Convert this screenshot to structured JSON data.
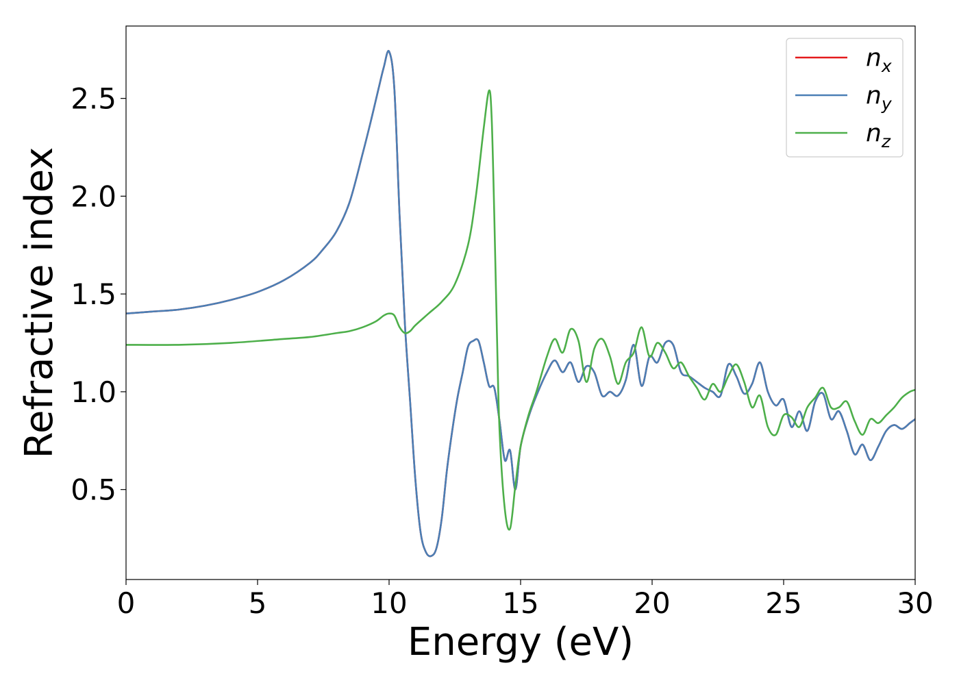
{
  "chart_data": {
    "type": "line",
    "title": "",
    "xlabel": "Energy (eV)",
    "ylabel": "Refractive index",
    "xlim": [
      0,
      30
    ],
    "ylim": [
      0.04,
      2.87
    ],
    "x_ticks": [
      0,
      5,
      10,
      15,
      20,
      25,
      30
    ],
    "y_ticks": [
      0.5,
      1.0,
      1.5,
      2.0,
      2.5
    ],
    "x_tick_labels": [
      "0",
      "5",
      "10",
      "15",
      "20",
      "25",
      "30"
    ],
    "y_tick_labels": [
      "0.5",
      "1.0",
      "1.5",
      "2.0",
      "2.5"
    ],
    "grid": false,
    "legend_position": "top-right",
    "legend": [
      {
        "base": "n",
        "sub": "x",
        "color": "#e41a1c"
      },
      {
        "base": "n",
        "sub": "y",
        "color": "#4a7fb5"
      },
      {
        "base": "n",
        "sub": "z",
        "color": "#4daf4a"
      }
    ],
    "series": [
      {
        "name": "n_x",
        "color": "#e41a1c",
        "x": [
          0,
          1,
          2,
          3,
          4,
          5,
          6,
          7,
          7.5,
          8,
          8.5,
          9,
          9.3,
          9.6,
          9.8,
          10,
          10.2,
          10.4,
          10.6,
          10.8,
          11,
          11.2,
          11.4,
          11.6,
          11.8,
          12,
          12.2,
          12.4,
          12.6,
          12.8,
          13,
          13.2,
          13.4,
          13.6,
          13.8,
          14,
          14.2,
          14.4,
          14.6,
          14.8,
          15,
          15.3,
          15.6,
          16,
          16.3,
          16.6,
          16.9,
          17.2,
          17.5,
          17.8,
          18.1,
          18.4,
          18.7,
          19,
          19.3,
          19.6,
          19.9,
          20.2,
          20.5,
          20.8,
          21.1,
          21.4,
          21.7,
          22,
          22.3,
          22.6,
          22.9,
          23.2,
          23.5,
          23.8,
          24.1,
          24.4,
          24.7,
          25,
          25.3,
          25.6,
          25.9,
          26.2,
          26.5,
          26.8,
          27.1,
          27.4,
          27.7,
          28,
          28.3,
          28.6,
          28.9,
          29.2,
          29.5,
          29.8,
          30
        ],
        "y": [
          1.4,
          1.41,
          1.42,
          1.44,
          1.47,
          1.51,
          1.57,
          1.66,
          1.73,
          1.82,
          1.97,
          2.22,
          2.38,
          2.55,
          2.66,
          2.74,
          2.55,
          1.9,
          1.35,
          0.95,
          0.55,
          0.28,
          0.18,
          0.16,
          0.2,
          0.35,
          0.6,
          0.8,
          0.97,
          1.1,
          1.23,
          1.26,
          1.26,
          1.15,
          1.03,
          1.02,
          0.85,
          0.65,
          0.7,
          0.5,
          0.72,
          0.87,
          0.98,
          1.1,
          1.16,
          1.1,
          1.15,
          1.05,
          1.13,
          1.1,
          0.98,
          1.0,
          0.98,
          1.06,
          1.24,
          1.03,
          1.18,
          1.15,
          1.25,
          1.24,
          1.1,
          1.08,
          1.05,
          1.02,
          1.0,
          0.98,
          1.14,
          1.08,
          0.99,
          1.04,
          1.15,
          1.0,
          0.93,
          0.96,
          0.82,
          0.9,
          0.8,
          0.95,
          0.99,
          0.86,
          0.9,
          0.8,
          0.68,
          0.73,
          0.65,
          0.72,
          0.8,
          0.83,
          0.81,
          0.84,
          0.86
        ]
      },
      {
        "name": "n_y",
        "color": "#4a7fb5",
        "x": [
          0,
          1,
          2,
          3,
          4,
          5,
          6,
          7,
          7.5,
          8,
          8.5,
          9,
          9.3,
          9.6,
          9.8,
          10,
          10.2,
          10.4,
          10.6,
          10.8,
          11,
          11.2,
          11.4,
          11.6,
          11.8,
          12,
          12.2,
          12.4,
          12.6,
          12.8,
          13,
          13.2,
          13.4,
          13.6,
          13.8,
          14,
          14.2,
          14.4,
          14.6,
          14.8,
          15,
          15.3,
          15.6,
          16,
          16.3,
          16.6,
          16.9,
          17.2,
          17.5,
          17.8,
          18.1,
          18.4,
          18.7,
          19,
          19.3,
          19.6,
          19.9,
          20.2,
          20.5,
          20.8,
          21.1,
          21.4,
          21.7,
          22,
          22.3,
          22.6,
          22.9,
          23.2,
          23.5,
          23.8,
          24.1,
          24.4,
          24.7,
          25,
          25.3,
          25.6,
          25.9,
          26.2,
          26.5,
          26.8,
          27.1,
          27.4,
          27.7,
          28,
          28.3,
          28.6,
          28.9,
          29.2,
          29.5,
          29.8,
          30
        ],
        "y": [
          1.4,
          1.41,
          1.42,
          1.44,
          1.47,
          1.51,
          1.57,
          1.66,
          1.73,
          1.82,
          1.97,
          2.22,
          2.38,
          2.55,
          2.66,
          2.74,
          2.55,
          1.9,
          1.35,
          0.95,
          0.55,
          0.28,
          0.18,
          0.16,
          0.2,
          0.35,
          0.6,
          0.8,
          0.97,
          1.1,
          1.23,
          1.26,
          1.26,
          1.15,
          1.03,
          1.02,
          0.85,
          0.65,
          0.7,
          0.5,
          0.72,
          0.87,
          0.98,
          1.1,
          1.16,
          1.1,
          1.15,
          1.05,
          1.13,
          1.1,
          0.98,
          1.0,
          0.98,
          1.06,
          1.24,
          1.03,
          1.18,
          1.15,
          1.25,
          1.24,
          1.1,
          1.08,
          1.05,
          1.02,
          1.0,
          0.98,
          1.14,
          1.08,
          0.99,
          1.04,
          1.15,
          1.0,
          0.93,
          0.96,
          0.82,
          0.9,
          0.8,
          0.95,
          0.99,
          0.86,
          0.9,
          0.8,
          0.68,
          0.73,
          0.65,
          0.72,
          0.8,
          0.83,
          0.81,
          0.84,
          0.86
        ]
      },
      {
        "name": "n_z",
        "color": "#4daf4a",
        "x": [
          0,
          2,
          4,
          6,
          7,
          8,
          8.5,
          9,
          9.5,
          9.8,
          10,
          10.2,
          10.4,
          10.6,
          10.8,
          11,
          11.5,
          12,
          12.5,
          13,
          13.3,
          13.6,
          13.8,
          13.9,
          14,
          14.1,
          14.2,
          14.4,
          14.6,
          14.8,
          15,
          15.3,
          15.6,
          16,
          16.3,
          16.6,
          16.9,
          17.2,
          17.5,
          17.8,
          18.1,
          18.4,
          18.7,
          19,
          19.3,
          19.6,
          19.9,
          20.2,
          20.5,
          20.8,
          21.1,
          21.4,
          21.7,
          22,
          22.3,
          22.6,
          22.9,
          23.2,
          23.5,
          23.8,
          24.1,
          24.4,
          24.7,
          25,
          25.3,
          25.6,
          25.9,
          26.2,
          26.5,
          26.8,
          27.1,
          27.4,
          27.7,
          28,
          28.3,
          28.6,
          28.9,
          29.2,
          29.5,
          29.8,
          30
        ],
        "y": [
          1.24,
          1.24,
          1.25,
          1.27,
          1.28,
          1.3,
          1.31,
          1.33,
          1.36,
          1.39,
          1.4,
          1.39,
          1.33,
          1.3,
          1.31,
          1.34,
          1.4,
          1.46,
          1.55,
          1.75,
          2.0,
          2.35,
          2.54,
          2.4,
          1.9,
          1.3,
          0.8,
          0.4,
          0.3,
          0.52,
          0.72,
          0.88,
          1.0,
          1.18,
          1.27,
          1.2,
          1.32,
          1.26,
          1.05,
          1.22,
          1.27,
          1.18,
          1.04,
          1.15,
          1.2,
          1.33,
          1.18,
          1.25,
          1.2,
          1.12,
          1.15,
          1.08,
          1.02,
          0.96,
          1.04,
          1.0,
          1.08,
          1.14,
          1.05,
          0.92,
          0.98,
          0.82,
          0.78,
          0.88,
          0.87,
          0.82,
          0.92,
          0.97,
          1.02,
          0.92,
          0.92,
          0.95,
          0.85,
          0.78,
          0.86,
          0.84,
          0.88,
          0.92,
          0.97,
          1.0,
          1.01
        ]
      }
    ]
  }
}
